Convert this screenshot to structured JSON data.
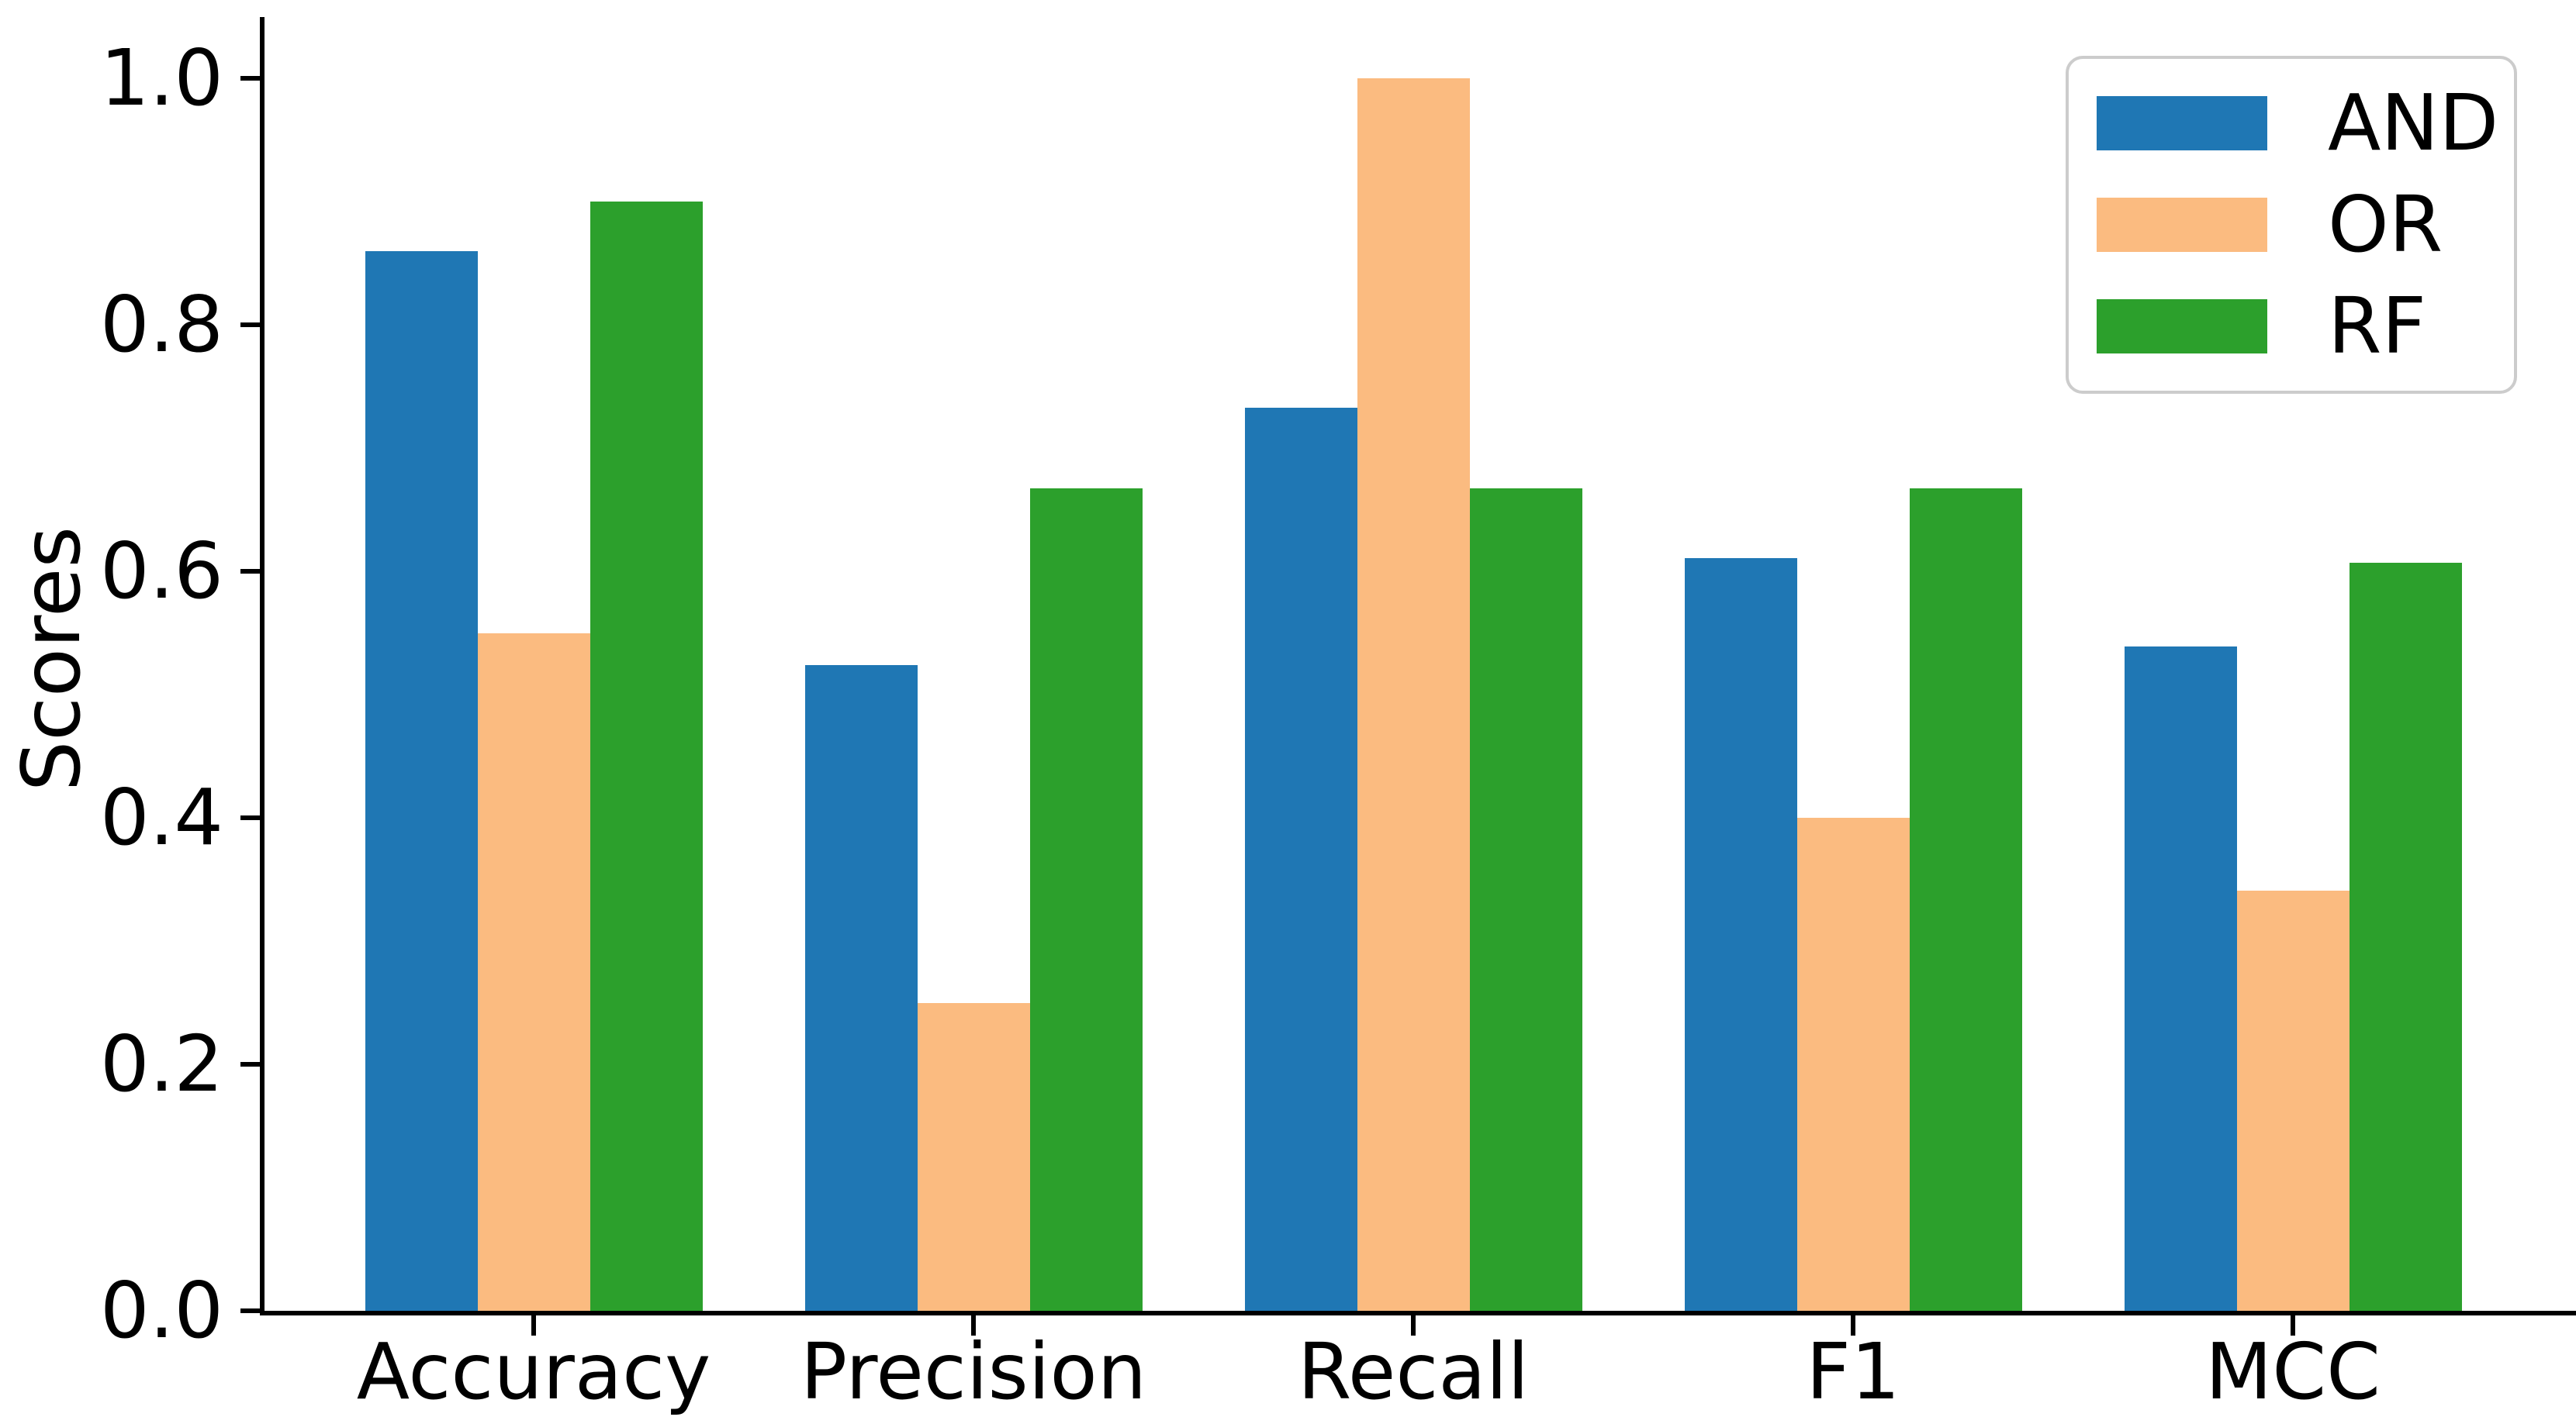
{
  "chart_data": {
    "type": "bar",
    "title": "",
    "xlabel": "",
    "ylabel": "Scores",
    "categories": [
      "Accuracy",
      "Precision",
      "Recall",
      "F1",
      "MCC"
    ],
    "series": [
      {
        "name": "AND",
        "color": "#1f77b4",
        "values": [
          0.86,
          0.524,
          0.733,
          0.611,
          0.539
        ]
      },
      {
        "name": "OR",
        "color": "#fbbb80",
        "values": [
          0.55,
          0.25,
          1.0,
          0.4,
          0.341
        ]
      },
      {
        "name": "RF",
        "color": "#2ca02c",
        "values": [
          0.9,
          0.667,
          0.667,
          0.667,
          0.607
        ]
      }
    ],
    "ytick_labels": [
      "0.0",
      "0.2",
      "0.4",
      "0.6",
      "0.8",
      "1.0"
    ],
    "ytick_values": [
      0.0,
      0.2,
      0.4,
      0.6,
      0.8,
      1.0
    ],
    "ylim": [
      0.0,
      1.05
    ],
    "grid": false,
    "legend_position": "upper right",
    "axis_color": "#000000",
    "text_color": "#000000",
    "legend_border_color": "#cccccc",
    "background_color": "#ffffff"
  }
}
